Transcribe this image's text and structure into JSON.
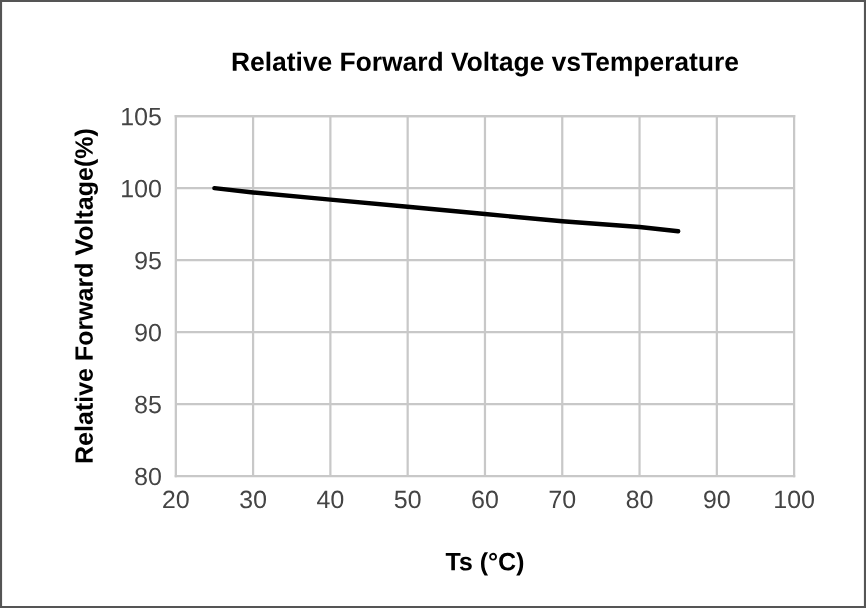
{
  "chart_data": {
    "type": "line",
    "title": "Relative Forward Voltage vsTemperature",
    "xlabel": "Ts (°C)",
    "ylabel": "Relative Forward Voltage(%)",
    "series": [
      {
        "color": "#000000",
        "x": [
          25,
          30,
          40,
          50,
          60,
          70,
          80,
          85
        ],
        "values": [
          100,
          99.7,
          99.2,
          98.7,
          98.2,
          97.7,
          97.3,
          97.0
        ]
      }
    ],
    "xlim": [
      20,
      100
    ],
    "xticks": [
      20,
      30,
      40,
      50,
      60,
      70,
      80,
      90,
      100
    ],
    "ylim": [
      80,
      105
    ],
    "yticks": [
      80,
      85,
      90,
      95,
      100,
      105
    ],
    "grid": true
  }
}
